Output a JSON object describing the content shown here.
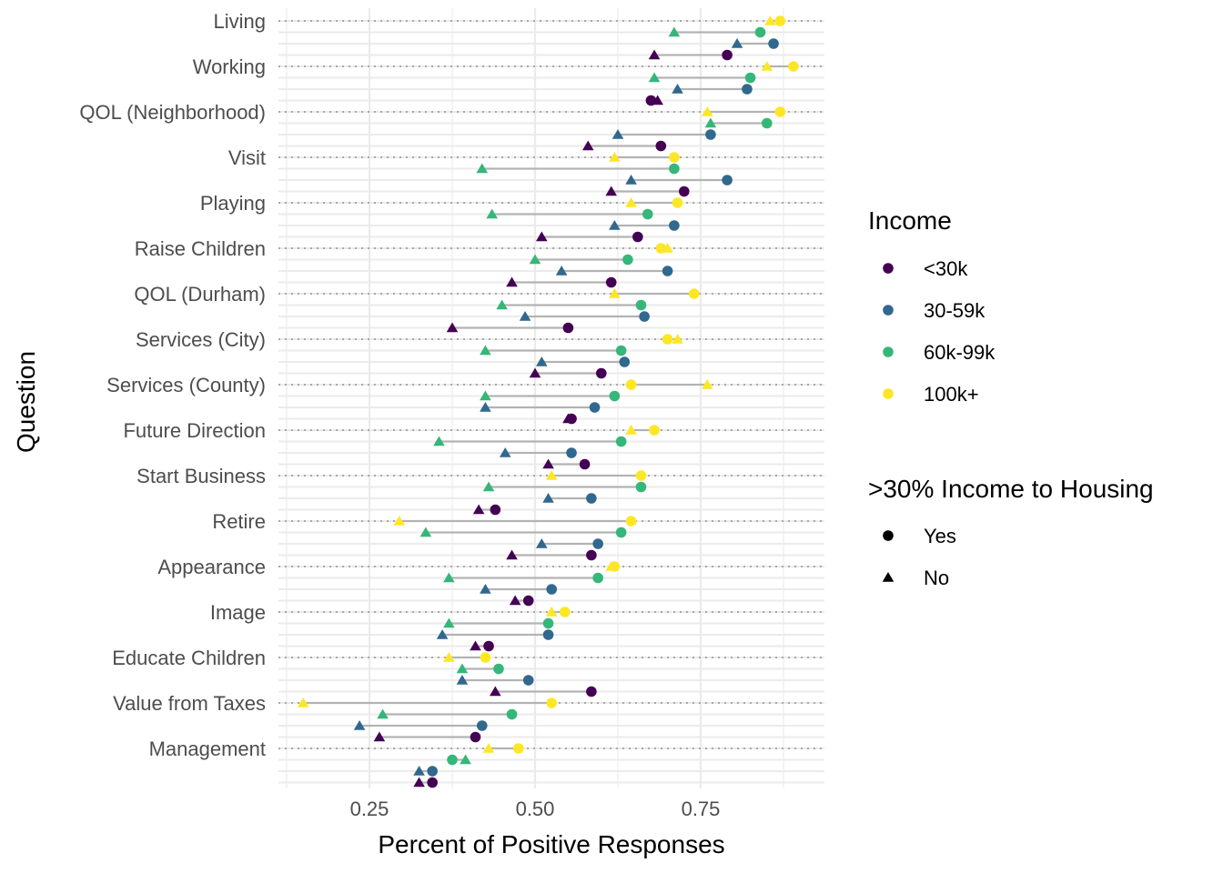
{
  "chart_data": {
    "type": "scatter",
    "xlabel": "Percent of Positive Responses",
    "ylabel": "Question",
    "xlim": [
      0.13,
      0.92
    ],
    "x_ticks": [
      0.25,
      0.5,
      0.75
    ],
    "x_tick_labels": [
      "0.25",
      "0.50",
      "0.75"
    ],
    "grid": true,
    "legend_position": "right",
    "questions": [
      "Living",
      "Working",
      "QOL (Neighborhood)",
      "Visit",
      "Playing",
      "Raise Children",
      "QOL (Durham)",
      "Services (City)",
      "Services (County)",
      "Future Direction",
      "Start Business",
      "Retire",
      "Appearance",
      "Image",
      "Educate Children",
      "Value from Taxes",
      "Management"
    ],
    "income_legend": {
      "title": "Income",
      "items": [
        {
          "name": "<30k",
          "color": "#440154"
        },
        {
          "name": "30-59k",
          "color": "#31688e"
        },
        {
          "name": "60k-99k",
          "color": "#35b779"
        },
        {
          "name": "100k+",
          "color": "#fde725"
        }
      ]
    },
    "housing_legend": {
      "title": ">30% Income to Housing",
      "items": [
        {
          "name": "Yes",
          "shape": "circle"
        },
        {
          "name": "No",
          "shape": "triangle"
        }
      ]
    },
    "series": [
      {
        "question": "Living",
        "income": "100k+",
        "yes": 0.87,
        "no": 0.855
      },
      {
        "question": "Living",
        "income": "60k-99k",
        "yes": 0.84,
        "no": 0.71
      },
      {
        "question": "Living",
        "income": "30-59k",
        "yes": 0.86,
        "no": 0.805
      },
      {
        "question": "Living",
        "income": "<30k",
        "yes": 0.79,
        "no": 0.68
      },
      {
        "question": "Working",
        "income": "100k+",
        "yes": 0.89,
        "no": 0.85
      },
      {
        "question": "Working",
        "income": "60k-99k",
        "yes": 0.825,
        "no": 0.68
      },
      {
        "question": "Working",
        "income": "30-59k",
        "yes": 0.82,
        "no": 0.715
      },
      {
        "question": "Working",
        "income": "<30k",
        "yes": 0.675,
        "no": 0.685
      },
      {
        "question": "QOL (Neighborhood)",
        "income": "100k+",
        "yes": 0.87,
        "no": 0.76
      },
      {
        "question": "QOL (Neighborhood)",
        "income": "60k-99k",
        "yes": 0.85,
        "no": 0.765
      },
      {
        "question": "QOL (Neighborhood)",
        "income": "30-59k",
        "yes": 0.765,
        "no": 0.625
      },
      {
        "question": "QOL (Neighborhood)",
        "income": "<30k",
        "yes": 0.69,
        "no": 0.58
      },
      {
        "question": "Visit",
        "income": "100k+",
        "yes": 0.71,
        "no": 0.62
      },
      {
        "question": "Visit",
        "income": "60k-99k",
        "yes": 0.71,
        "no": 0.42
      },
      {
        "question": "Visit",
        "income": "30-59k",
        "yes": 0.79,
        "no": 0.645
      },
      {
        "question": "Visit",
        "income": "<30k",
        "yes": 0.725,
        "no": 0.615
      },
      {
        "question": "Playing",
        "income": "100k+",
        "yes": 0.715,
        "no": 0.645
      },
      {
        "question": "Playing",
        "income": "60k-99k",
        "yes": 0.67,
        "no": 0.435
      },
      {
        "question": "Playing",
        "income": "30-59k",
        "yes": 0.71,
        "no": 0.62
      },
      {
        "question": "Playing",
        "income": "<30k",
        "yes": 0.655,
        "no": 0.51
      },
      {
        "question": "Raise Children",
        "income": "100k+",
        "yes": 0.69,
        "no": 0.7
      },
      {
        "question": "Raise Children",
        "income": "60k-99k",
        "yes": 0.64,
        "no": 0.5
      },
      {
        "question": "Raise Children",
        "income": "30-59k",
        "yes": 0.7,
        "no": 0.54
      },
      {
        "question": "Raise Children",
        "income": "<30k",
        "yes": 0.615,
        "no": 0.465
      },
      {
        "question": "QOL (Durham)",
        "income": "100k+",
        "yes": 0.74,
        "no": 0.62
      },
      {
        "question": "QOL (Durham)",
        "income": "60k-99k",
        "yes": 0.66,
        "no": 0.45
      },
      {
        "question": "QOL (Durham)",
        "income": "30-59k",
        "yes": 0.665,
        "no": 0.485
      },
      {
        "question": "QOL (Durham)",
        "income": "<30k",
        "yes": 0.55,
        "no": 0.375
      },
      {
        "question": "Services (City)",
        "income": "100k+",
        "yes": 0.7,
        "no": 0.715
      },
      {
        "question": "Services (City)",
        "income": "60k-99k",
        "yes": 0.63,
        "no": 0.425
      },
      {
        "question": "Services (City)",
        "income": "30-59k",
        "yes": 0.635,
        "no": 0.51
      },
      {
        "question": "Services (City)",
        "income": "<30k",
        "yes": 0.6,
        "no": 0.5
      },
      {
        "question": "Services (County)",
        "income": "100k+",
        "yes": 0.645,
        "no": 0.76
      },
      {
        "question": "Services (County)",
        "income": "60k-99k",
        "yes": 0.62,
        "no": 0.425
      },
      {
        "question": "Services (County)",
        "income": "30-59k",
        "yes": 0.59,
        "no": 0.425
      },
      {
        "question": "Services (County)",
        "income": "<30k",
        "yes": 0.555,
        "no": 0.55
      },
      {
        "question": "Future Direction",
        "income": "100k+",
        "yes": 0.68,
        "no": 0.645
      },
      {
        "question": "Future Direction",
        "income": "60k-99k",
        "yes": 0.63,
        "no": 0.355
      },
      {
        "question": "Future Direction",
        "income": "30-59k",
        "yes": 0.555,
        "no": 0.455
      },
      {
        "question": "Future Direction",
        "income": "<30k",
        "yes": 0.575,
        "no": 0.52
      },
      {
        "question": "Start Business",
        "income": "100k+",
        "yes": 0.66,
        "no": 0.525
      },
      {
        "question": "Start Business",
        "income": "60k-99k",
        "yes": 0.66,
        "no": 0.43
      },
      {
        "question": "Start Business",
        "income": "30-59k",
        "yes": 0.585,
        "no": 0.52
      },
      {
        "question": "Start Business",
        "income": "<30k",
        "yes": 0.44,
        "no": 0.415
      },
      {
        "question": "Retire",
        "income": "100k+",
        "yes": 0.645,
        "no": 0.295
      },
      {
        "question": "Retire",
        "income": "60k-99k",
        "yes": 0.63,
        "no": 0.335
      },
      {
        "question": "Retire",
        "income": "30-59k",
        "yes": 0.595,
        "no": 0.51
      },
      {
        "question": "Retire",
        "income": "<30k",
        "yes": 0.585,
        "no": 0.465
      },
      {
        "question": "Appearance",
        "income": "100k+",
        "yes": 0.62,
        "no": 0.615
      },
      {
        "question": "Appearance",
        "income": "60k-99k",
        "yes": 0.595,
        "no": 0.37
      },
      {
        "question": "Appearance",
        "income": "30-59k",
        "yes": 0.525,
        "no": 0.425
      },
      {
        "question": "Appearance",
        "income": "<30k",
        "yes": 0.49,
        "no": 0.47
      },
      {
        "question": "Image",
        "income": "100k+",
        "yes": 0.545,
        "no": 0.525
      },
      {
        "question": "Image",
        "income": "60k-99k",
        "yes": 0.52,
        "no": 0.37
      },
      {
        "question": "Image",
        "income": "30-59k",
        "yes": 0.52,
        "no": 0.36
      },
      {
        "question": "Image",
        "income": "<30k",
        "yes": 0.43,
        "no": 0.41
      },
      {
        "question": "Educate Children",
        "income": "100k+",
        "yes": 0.425,
        "no": 0.37
      },
      {
        "question": "Educate Children",
        "income": "60k-99k",
        "yes": 0.445,
        "no": 0.39
      },
      {
        "question": "Educate Children",
        "income": "30-59k",
        "yes": 0.49,
        "no": 0.39
      },
      {
        "question": "Educate Children",
        "income": "<30k",
        "yes": 0.585,
        "no": 0.44
      },
      {
        "question": "Value from Taxes",
        "income": "100k+",
        "yes": 0.525,
        "no": 0.15
      },
      {
        "question": "Value from Taxes",
        "income": "60k-99k",
        "yes": 0.465,
        "no": 0.27
      },
      {
        "question": "Value from Taxes",
        "income": "30-59k",
        "yes": 0.42,
        "no": 0.235
      },
      {
        "question": "Value from Taxes",
        "income": "<30k",
        "yes": 0.41,
        "no": 0.265
      },
      {
        "question": "Management",
        "income": "100k+",
        "yes": 0.475,
        "no": 0.43
      },
      {
        "question": "Management",
        "income": "60k-99k",
        "yes": 0.375,
        "no": 0.395
      },
      {
        "question": "Management",
        "income": "30-59k",
        "yes": 0.345,
        "no": 0.325
      },
      {
        "question": "Management",
        "income": "<30k",
        "yes": 0.345,
        "no": 0.325
      }
    ]
  }
}
